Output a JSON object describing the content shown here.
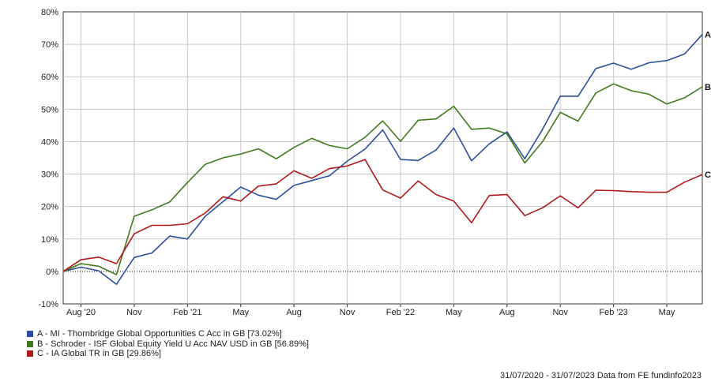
{
  "chart_data": {
    "type": "line",
    "x": [
      "2020-07-31",
      "2020-08-31",
      "2020-09-30",
      "2020-10-31",
      "2020-11-30",
      "2020-12-31",
      "2021-01-31",
      "2021-02-28",
      "2021-03-31",
      "2021-04-30",
      "2021-05-31",
      "2021-06-30",
      "2021-07-31",
      "2021-08-31",
      "2021-09-30",
      "2021-10-31",
      "2021-11-30",
      "2021-12-31",
      "2022-01-31",
      "2022-02-28",
      "2022-03-31",
      "2022-04-30",
      "2022-05-31",
      "2022-06-30",
      "2022-07-31",
      "2022-08-31",
      "2022-09-30",
      "2022-10-31",
      "2022-11-30",
      "2022-12-31",
      "2023-01-31",
      "2023-02-28",
      "2023-03-31",
      "2023-04-30",
      "2023-05-31",
      "2023-06-30",
      "2023-07-31"
    ],
    "x_tick_labels": [
      "Aug '20",
      "Nov",
      "Feb '21",
      "May",
      "Aug",
      "Nov",
      "Feb '22",
      "May",
      "Aug",
      "Nov",
      "Feb '23",
      "May"
    ],
    "ylim": [
      -10,
      80
    ],
    "y_tick_labels": [
      "-10%",
      "0%",
      "10%",
      "20%",
      "30%",
      "40%",
      "50%",
      "60%",
      "70%",
      "80%"
    ],
    "grid": true,
    "series": [
      {
        "name": "A - MI - Thornbridge Global Opportunities C Acc in GB [73.02%]",
        "end_label": "A",
        "color": "#2b4fa0",
        "values": [
          0,
          1.3,
          0.2,
          -4,
          4.3,
          5.7,
          10.9,
          10,
          17,
          21.5,
          26,
          23.5,
          22.2,
          26.5,
          28,
          29.5,
          34,
          37.7,
          43.6,
          34.5,
          34.2,
          37.4,
          44.2,
          34.1,
          39.3,
          43,
          34.7,
          43.8,
          54,
          54,
          62.5,
          64.2,
          62.3,
          64.3,
          65,
          67,
          73.02
        ]
      },
      {
        "name": "B - Schroder - ISF Global Equity Yield U Acc NAV USD in GB [56.89%]",
        "end_label": "B",
        "color": "#3f7a1c",
        "values": [
          0,
          2.4,
          1.6,
          -1,
          17,
          19,
          21.4,
          27.4,
          33,
          35,
          36.2,
          37.8,
          34.7,
          38.2,
          41,
          38.8,
          37.8,
          41.3,
          46.4,
          40.1,
          46.6,
          47,
          50.9,
          43.8,
          44.2,
          42.4,
          33.4,
          40,
          49,
          46.3,
          55,
          57.8,
          55.7,
          54.6,
          51.6,
          53.5,
          56.89
        ]
      },
      {
        "name": "C - IA Global TR in GB [29.86%]",
        "end_label": "C",
        "color": "#b01a1a",
        "values": [
          0,
          3.6,
          4.4,
          2.4,
          11.6,
          14.2,
          14.2,
          14.7,
          18,
          23,
          21.7,
          26.3,
          27,
          31,
          28.7,
          31.7,
          32.5,
          34.5,
          25.1,
          22.6,
          27.9,
          23.7,
          21.7,
          15,
          23.4,
          23.7,
          17.2,
          19.6,
          23.3,
          19.6,
          25,
          24.9,
          24.6,
          24.4,
          24.4,
          27.5,
          29.86
        ]
      }
    ]
  },
  "legend": {
    "a": "A - MI - Thornbridge Global Opportunities C Acc in GB [73.02%]",
    "b": "B - Schroder - ISF Global Equity Yield U Acc NAV USD in GB [56.89%]",
    "c": "C - IA Global TR in GB [29.86%]"
  },
  "footer": "31/07/2020 - 31/07/2023 Data from FE fundinfo2023"
}
